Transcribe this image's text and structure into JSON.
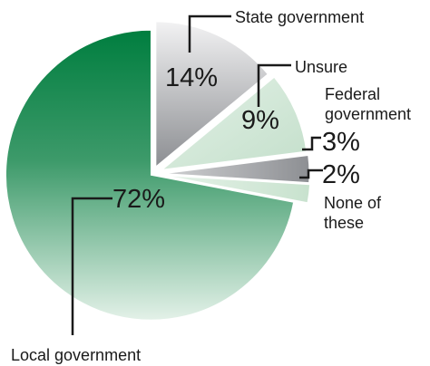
{
  "chart_data": {
    "type": "pie",
    "slices": [
      {
        "label": "State government",
        "value": 14,
        "value_label": "14%",
        "color": "#a7a9ac"
      },
      {
        "label": "Unsure",
        "value": 9,
        "value_label": "9%",
        "color": "#cfe6d6"
      },
      {
        "label": "Federal government",
        "value": 3,
        "value_label": "3%",
        "color": "#9a9ca0"
      },
      {
        "label": "None of these",
        "value": 2,
        "value_label": "2%",
        "color": "#d6eadb"
      },
      {
        "label": "Local government",
        "value": 72,
        "value_label": "72%",
        "color": "#08864a"
      }
    ],
    "exploded": true,
    "start_angle": "12 o'clock, clockwise"
  }
}
